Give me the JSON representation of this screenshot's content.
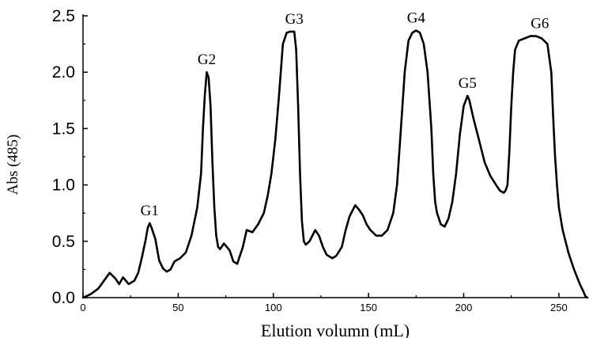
{
  "chart_data": {
    "type": "line",
    "title": "",
    "xlabel": "Elution volumn (mL)",
    "ylabel": "Abs (485)",
    "xlim": [
      0,
      265
    ],
    "ylim": [
      0,
      2.5
    ],
    "xticks": [
      0,
      50,
      100,
      150,
      200,
      250
    ],
    "xtick_labels": [
      "0",
      "50",
      "100",
      "150",
      "200",
      "250"
    ],
    "yticks": [
      0.0,
      0.5,
      1.0,
      1.5,
      2.0,
      2.5
    ],
    "ytick_labels": [
      "0.0",
      "0.5",
      "1.0",
      "1.5",
      "2.0",
      "2.5"
    ],
    "grid": false,
    "line_color": "#000000",
    "series": [
      {
        "x": [
          0,
          4,
          8,
          11,
          14,
          17,
          19,
          21,
          24,
          27,
          29,
          31,
          33,
          34,
          35,
          36,
          38,
          40,
          42,
          44,
          46,
          48,
          51,
          54,
          57,
          60,
          62,
          63,
          64,
          65,
          66,
          67,
          68,
          69,
          70,
          71,
          72,
          74,
          77,
          79,
          81,
          84,
          86,
          89,
          92,
          95,
          97,
          99,
          101,
          103,
          105,
          107,
          109,
          111,
          112,
          113,
          114,
          115,
          116,
          117,
          119,
          122,
          124,
          126,
          128,
          131,
          133,
          136,
          138,
          140,
          143,
          145,
          147,
          149,
          151,
          154,
          157,
          160,
          163,
          165,
          167,
          169,
          171,
          173,
          175,
          177,
          179,
          181,
          183,
          184,
          185,
          186,
          188,
          190,
          192,
          194,
          196,
          198,
          200,
          202,
          203,
          205,
          208,
          211,
          214,
          217,
          219,
          221,
          222,
          223,
          224,
          225,
          226,
          227,
          229,
          232,
          235,
          238,
          241,
          244,
          246,
          247,
          248,
          249,
          250,
          252,
          255,
          258,
          261,
          263,
          264,
          265
        ],
        "y": [
          0.0,
          0.03,
          0.08,
          0.15,
          0.22,
          0.17,
          0.12,
          0.18,
          0.12,
          0.15,
          0.22,
          0.36,
          0.52,
          0.62,
          0.66,
          0.62,
          0.52,
          0.33,
          0.26,
          0.23,
          0.25,
          0.32,
          0.35,
          0.4,
          0.55,
          0.8,
          1.1,
          1.5,
          1.8,
          2.0,
          1.95,
          1.7,
          1.2,
          0.8,
          0.55,
          0.45,
          0.43,
          0.48,
          0.42,
          0.32,
          0.3,
          0.45,
          0.6,
          0.58,
          0.65,
          0.75,
          0.9,
          1.1,
          1.4,
          1.8,
          2.25,
          2.35,
          2.36,
          2.36,
          2.2,
          1.7,
          1.1,
          0.68,
          0.5,
          0.47,
          0.5,
          0.6,
          0.55,
          0.45,
          0.38,
          0.35,
          0.37,
          0.45,
          0.6,
          0.72,
          0.82,
          0.78,
          0.73,
          0.65,
          0.6,
          0.55,
          0.55,
          0.6,
          0.75,
          1.0,
          1.5,
          2.0,
          2.28,
          2.35,
          2.37,
          2.35,
          2.25,
          2.0,
          1.5,
          1.1,
          0.85,
          0.75,
          0.65,
          0.63,
          0.7,
          0.85,
          1.1,
          1.45,
          1.7,
          1.79,
          1.75,
          1.6,
          1.4,
          1.2,
          1.08,
          1.0,
          0.95,
          0.93,
          0.95,
          1.0,
          1.3,
          1.7,
          2.0,
          2.2,
          2.28,
          2.3,
          2.32,
          2.32,
          2.3,
          2.25,
          2.0,
          1.6,
          1.25,
          1.0,
          0.8,
          0.6,
          0.4,
          0.25,
          0.12,
          0.05,
          0.01,
          0.0
        ]
      }
    ],
    "annotations": [
      {
        "text": "G1",
        "x": 35,
        "y": 0.66
      },
      {
        "text": "G2",
        "x": 65,
        "y": 2.0
      },
      {
        "text": "G3",
        "x": 111,
        "y": 2.36
      },
      {
        "text": "G4",
        "x": 175,
        "y": 2.37
      },
      {
        "text": "G5",
        "x": 202,
        "y": 1.79
      },
      {
        "text": "G6",
        "x": 240,
        "y": 2.32
      }
    ]
  }
}
